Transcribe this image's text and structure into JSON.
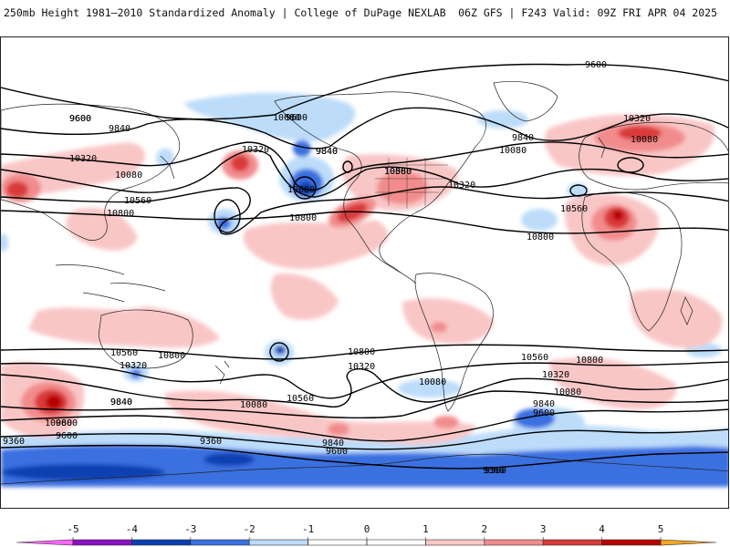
{
  "header": {
    "title": "250mb Height 1981–2010 Standardized Anomaly | College of DuPage NEXLAB",
    "run": "06Z GFS | F243 Valid: 09Z FRI APR 04 2025"
  },
  "colors": {
    "neg5": "#ff66ff",
    "neg4": "#8a10c0",
    "neg3": "#0a3fb0",
    "neg2": "#3a6fe0",
    "neg1": "#bcdcfa",
    "zero": "#ffffff",
    "pos1": "#f9c6c6",
    "pos2": "#f28c8c",
    "pos3": "#d93b3b",
    "pos4": "#b80000",
    "pos5": "#f5a623"
  },
  "legend": {
    "ticks": [
      "-5",
      "-4",
      "-3",
      "-2",
      "-1",
      "0",
      "1",
      "2",
      "3",
      "4",
      "5"
    ]
  },
  "contour_labels": [
    "9600",
    "9600",
    "9840",
    "10320",
    "10080",
    "10560",
    "10800",
    "9840",
    "10080",
    "10320",
    "10800",
    "10560",
    "10320",
    "10080",
    "9840",
    "10560",
    "10320",
    "10800",
    "10080",
    "9600",
    "9360",
    "9840",
    "10800",
    "10560",
    "10320",
    "10080",
    "10560",
    "10080",
    "9840",
    "9600",
    "9360",
    "10800",
    "10320",
    "10080",
    "10560",
    "10080",
    "9840",
    "9600",
    "9360",
    "9600",
    "10800",
    "10320",
    "10080",
    "9840",
    "9600",
    "9360",
    "9840",
    "10080",
    "9600"
  ]
}
